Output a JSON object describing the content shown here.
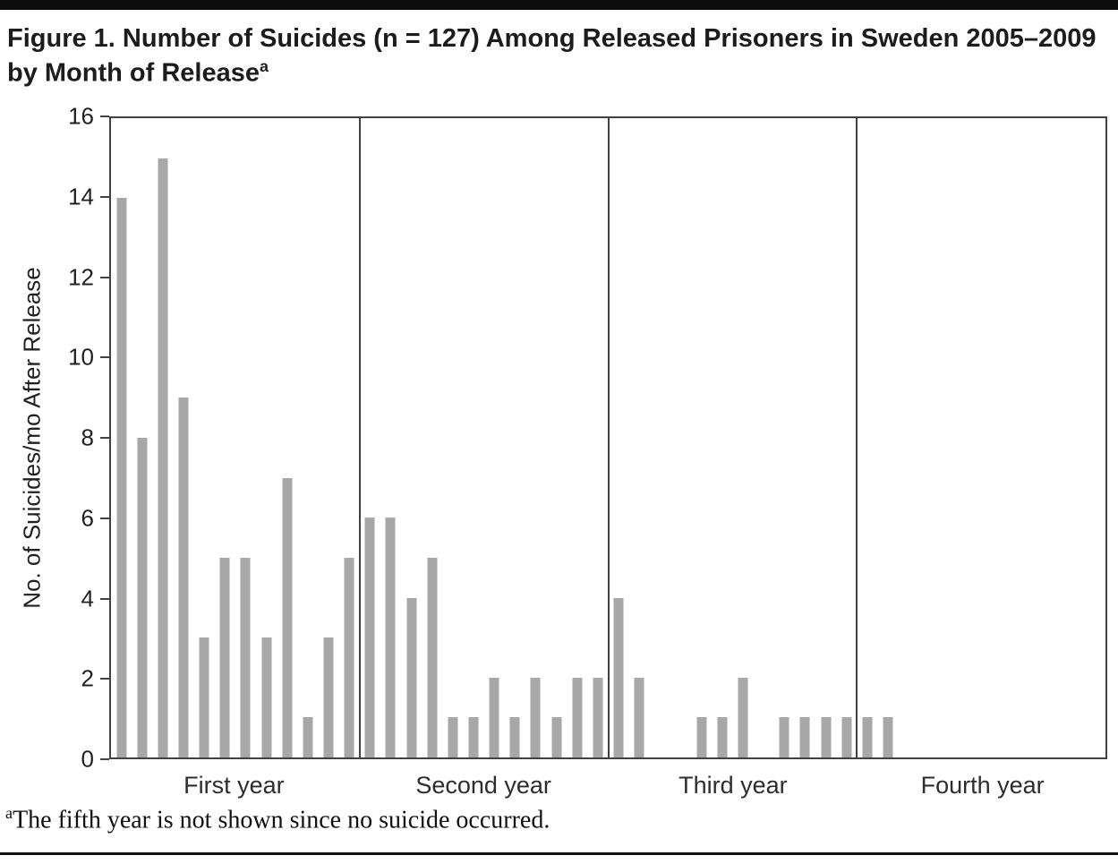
{
  "page": {
    "title": "Figure 1. Number of Suicides (n = 127) Among Released Prisoners in Sweden 2005–2009 by Month of Release",
    "title_superscript": "a",
    "footnote_superscript": "a",
    "footnote_text": "The fifth year is not shown since no suicide occurred."
  },
  "chart_data": {
    "type": "bar",
    "title": "Figure 1. Number of Suicides (n = 127) Among Released Prisoners in Sweden 2005–2009 by Month of Release",
    "ylabel": "No. of Suicides/mo After Release",
    "xlabel": "",
    "x_unit": "month after release (1–48), grouped by year",
    "ylim": [
      0,
      16
    ],
    "yticks": [
      0,
      2,
      4,
      6,
      8,
      10,
      12,
      14,
      16
    ],
    "bar_color": "#a7a7a7",
    "legend": "none",
    "grid": "vertical dividers between year sections only; full plot frame",
    "total_n": 127,
    "sections": [
      {
        "label": "First year",
        "values": [
          14,
          8,
          15,
          9,
          3,
          5,
          5,
          3,
          7,
          1,
          3,
          5
        ]
      },
      {
        "label": "Second year",
        "values": [
          6,
          6,
          4,
          5,
          1,
          1,
          2,
          1,
          2,
          1,
          2,
          2
        ]
      },
      {
        "label": "Third year",
        "values": [
          4,
          2,
          0,
          0,
          1,
          1,
          2,
          0,
          1,
          1,
          1,
          1
        ]
      },
      {
        "label": "Fourth year",
        "values": [
          1,
          1,
          0,
          0,
          0,
          0,
          0,
          0,
          0,
          0,
          0,
          0
        ]
      }
    ]
  }
}
